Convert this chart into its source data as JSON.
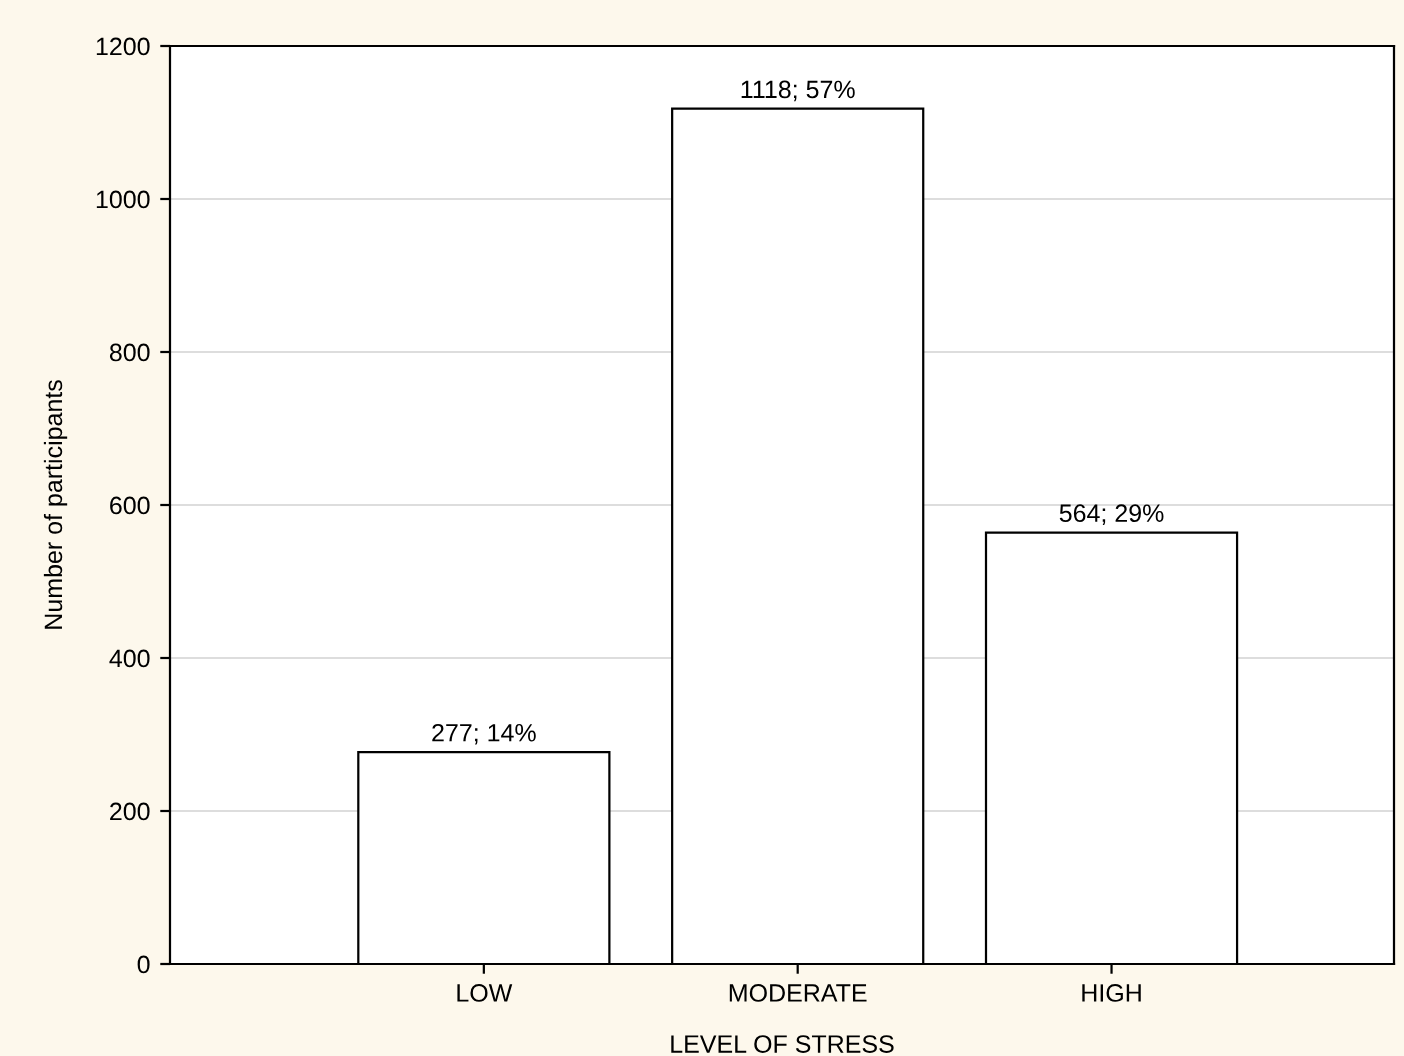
{
  "chart_data": {
    "type": "bar",
    "xlabel": "LEVEL OF STRESS",
    "ylabel": "Number of participants",
    "categories": [
      "LOW",
      "MODERATE",
      "HIGH"
    ],
    "values": [
      277,
      1118,
      564
    ],
    "value_labels": [
      "277; 14%",
      "1118; 57%",
      "564; 29%"
    ],
    "color": "#ffffff",
    "ylim": [
      0,
      1200
    ],
    "yticks": [
      0,
      200,
      400,
      600,
      800,
      1000,
      1200
    ],
    "grid": "y"
  }
}
